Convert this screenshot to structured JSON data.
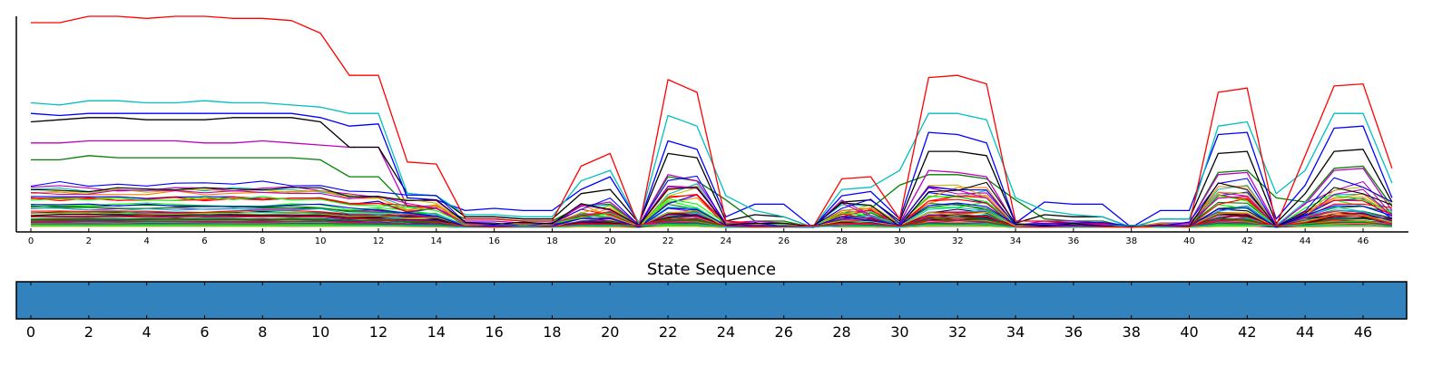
{
  "chart_data": [
    {
      "type": "line",
      "title": "",
      "xlabel": "",
      "ylabel": "",
      "xlim": [
        0,
        47
      ],
      "ylim": [
        0,
        1
      ],
      "x_ticks": [
        0,
        2,
        4,
        6,
        8,
        10,
        12,
        14,
        16,
        18,
        20,
        22,
        24,
        26,
        28,
        30,
        32,
        34,
        36,
        38,
        40,
        42,
        44,
        46
      ],
      "x_tick_labels": [
        "0",
        "2",
        "4",
        "6",
        "8",
        "10",
        "12",
        "14",
        "16",
        "18",
        "20",
        "22",
        "24",
        "26",
        "28",
        "30",
        "32",
        "34",
        "36",
        "38",
        "40",
        "42",
        "44",
        "46"
      ],
      "grid": false,
      "legend": "none",
      "series_count": 60,
      "palette": [
        "#ff0000",
        "#00bfbf",
        "#0000ff",
        "#000000",
        "#007f00",
        "#bf00bf",
        "#bfbf00",
        "#00ff00",
        "#ff7f00",
        "#7f007f"
      ],
      "highlight_series": [
        {
          "color": "#ff0000",
          "values": [
            0.97,
            0.97,
            1.0,
            1.0,
            0.99,
            1.0,
            1.0,
            0.99,
            0.99,
            0.98,
            0.92,
            0.72,
            0.72,
            0.31,
            0.3,
            0.04,
            0.04,
            0.03,
            0.03,
            0.29,
            0.35,
            0.0,
            0.7,
            0.64,
            0.03,
            0.02,
            0.01,
            0.0,
            0.23,
            0.24,
            0.04,
            0.71,
            0.72,
            0.68,
            0.03,
            0.03,
            0.02,
            0.02,
            0.0,
            0.01,
            0.01,
            0.64,
            0.66,
            0.01,
            0.34,
            0.67,
            0.68,
            0.28
          ]
        },
        {
          "color": "#00bfbf",
          "values": [
            0.59,
            0.58,
            0.6,
            0.6,
            0.59,
            0.59,
            0.6,
            0.59,
            0.59,
            0.58,
            0.57,
            0.54,
            0.54,
            0.16,
            0.15,
            0.06,
            0.06,
            0.05,
            0.05,
            0.22,
            0.27,
            0.02,
            0.53,
            0.48,
            0.15,
            0.08,
            0.05,
            0.0,
            0.18,
            0.19,
            0.27,
            0.54,
            0.54,
            0.51,
            0.14,
            0.08,
            0.06,
            0.05,
            0.0,
            0.04,
            0.04,
            0.48,
            0.5,
            0.16,
            0.27,
            0.54,
            0.54,
            0.21
          ]
        },
        {
          "color": "#0000ff",
          "values": [
            0.54,
            0.53,
            0.54,
            0.54,
            0.54,
            0.54,
            0.54,
            0.54,
            0.54,
            0.54,
            0.52,
            0.48,
            0.49,
            0.14,
            0.13,
            0.08,
            0.09,
            0.08,
            0.08,
            0.18,
            0.24,
            0.02,
            0.41,
            0.37,
            0.05,
            0.11,
            0.11,
            0.0,
            0.15,
            0.17,
            0.04,
            0.45,
            0.44,
            0.4,
            0.02,
            0.12,
            0.11,
            0.11,
            0.0,
            0.08,
            0.08,
            0.44,
            0.45,
            0.04,
            0.2,
            0.47,
            0.48,
            0.14
          ]
        },
        {
          "color": "#000000",
          "values": [
            0.5,
            0.51,
            0.52,
            0.52,
            0.51,
            0.51,
            0.51,
            0.52,
            0.52,
            0.52,
            0.5,
            0.38,
            0.38,
            0.16,
            0.15,
            0.05,
            0.05,
            0.04,
            0.04,
            0.16,
            0.18,
            0.02,
            0.35,
            0.33,
            0.03,
            0.06,
            0.05,
            0.0,
            0.12,
            0.13,
            0.03,
            0.36,
            0.36,
            0.34,
            0.02,
            0.06,
            0.05,
            0.05,
            0.0,
            0.04,
            0.04,
            0.35,
            0.36,
            0.02,
            0.16,
            0.36,
            0.37,
            0.12
          ]
        },
        {
          "color": "#bf00bf",
          "values": [
            0.4,
            0.4,
            0.41,
            0.41,
            0.41,
            0.41,
            0.4,
            0.4,
            0.41,
            0.4,
            0.39,
            0.38,
            0.38,
            0.1,
            0.09,
            0.03,
            0.03,
            0.02,
            0.02,
            0.1,
            0.12,
            0.01,
            0.25,
            0.22,
            0.02,
            0.03,
            0.02,
            0.0,
            0.07,
            0.08,
            0.02,
            0.27,
            0.26,
            0.24,
            0.01,
            0.03,
            0.03,
            0.02,
            0.0,
            0.02,
            0.02,
            0.25,
            0.26,
            0.01,
            0.11,
            0.27,
            0.28,
            0.08
          ]
        },
        {
          "color": "#007f00",
          "values": [
            0.32,
            0.32,
            0.34,
            0.33,
            0.33,
            0.33,
            0.33,
            0.33,
            0.33,
            0.33,
            0.32,
            0.24,
            0.24,
            0.1,
            0.1,
            0.04,
            0.04,
            0.03,
            0.03,
            0.1,
            0.11,
            0.01,
            0.24,
            0.22,
            0.13,
            0.03,
            0.03,
            0.0,
            0.08,
            0.09,
            0.2,
            0.25,
            0.25,
            0.23,
            0.13,
            0.04,
            0.03,
            0.03,
            0.0,
            0.02,
            0.02,
            0.26,
            0.27,
            0.14,
            0.12,
            0.28,
            0.29,
            0.1
          ]
        }
      ],
      "generated_series": {
        "count": 54,
        "max_level": 0.22,
        "min_level": 0.005
      }
    },
    {
      "type": "heatmap",
      "title": "State Sequence",
      "xlabel": "",
      "ylabel": "",
      "xlim": [
        0,
        47
      ],
      "x_ticks": [
        0,
        2,
        4,
        6,
        8,
        10,
        12,
        14,
        16,
        18,
        20,
        22,
        24,
        26,
        28,
        30,
        32,
        34,
        36,
        38,
        40,
        42,
        44,
        46
      ],
      "x_tick_labels": [
        "0",
        "2",
        "4",
        "6",
        "8",
        "10",
        "12",
        "14",
        "16",
        "18",
        "20",
        "22",
        "24",
        "26",
        "28",
        "30",
        "32",
        "34",
        "36",
        "38",
        "40",
        "42",
        "44",
        "46"
      ],
      "states": [
        0,
        0,
        0,
        0,
        0,
        0,
        0,
        0,
        0,
        0,
        0,
        0,
        0,
        0,
        0,
        0,
        0,
        0,
        0,
        0,
        0,
        0,
        0,
        0,
        0,
        0,
        0,
        0,
        0,
        0,
        0,
        0,
        0,
        0,
        0,
        0,
        0,
        0,
        0,
        0,
        0,
        0,
        0,
        0,
        0,
        0,
        0,
        0
      ],
      "state_colors": [
        "#3182bd"
      ]
    }
  ]
}
